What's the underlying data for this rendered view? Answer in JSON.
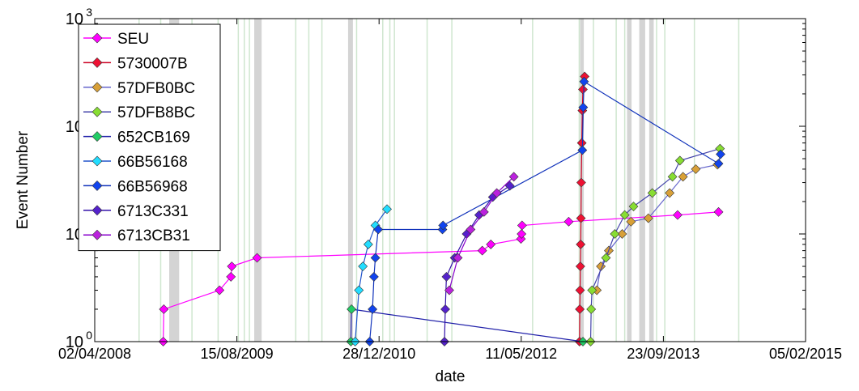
{
  "chart_data": {
    "type": "scatter",
    "title": "",
    "xlabel": "date",
    "ylabel": "Event Number",
    "y_scale": "log",
    "ylim": [
      1,
      1000
    ],
    "xlim": [
      "2008-04-02",
      "2015-02-05"
    ],
    "x_ticks": [
      "02/04/2008",
      "15/08/2009",
      "28/12/2010",
      "11/05/2012",
      "23/09/2013",
      "05/02/2015"
    ],
    "y_ticks": [
      {
        "value": 1,
        "base": "10",
        "exp": "0"
      },
      {
        "value": 10,
        "base": "10",
        "exp": "1"
      },
      {
        "value": 100,
        "base": "10",
        "exp": "2"
      },
      {
        "value": 1000,
        "base": "10",
        "exp": "3"
      }
    ],
    "legend_placement": "top-left",
    "grid": false,
    "background_bands": {
      "gray": [
        [
          "2008-12-20",
          "2009-01-24"
        ],
        [
          "2009-10-15",
          "2009-11-10"
        ],
        [
          "2010-09-10",
          "2010-09-27"
        ],
        [
          "2012-12-04",
          "2012-12-17"
        ],
        [
          "2013-05-18",
          "2013-06-03"
        ],
        [
          "2013-06-30",
          "2013-07-21"
        ],
        [
          "2013-08-04",
          "2013-08-20"
        ]
      ],
      "green": [
        "2008-09-05",
        "2008-11-20",
        "2009-03-10",
        "2009-06-10",
        "2009-08-20",
        "2009-09-10",
        "2009-09-28",
        "2010-03-10",
        "2010-04-25",
        "2010-06-10",
        "2010-10-10",
        "2011-01-10",
        "2011-02-04",
        "2011-02-20",
        "2011-06-15",
        "2011-09-10",
        "2012-06-20",
        "2012-12-01",
        "2013-01-20",
        "2013-04-10",
        "2013-05-10",
        "2013-08-30",
        "2013-09-28",
        "2014-01-10",
        "2014-06-15"
      ]
    },
    "series": [
      {
        "name": "SEU",
        "color": "#ff00ff",
        "line_color": "#ff00ff",
        "points": [
          [
            "2008-11-29",
            1
          ],
          [
            "2008-12-01",
            2
          ],
          [
            "2009-06-15",
            3
          ],
          [
            "2009-07-25",
            4
          ],
          [
            "2009-07-28",
            5
          ],
          [
            "2009-10-25",
            6
          ],
          [
            "2011-12-26",
            7
          ],
          [
            "2012-01-25",
            8
          ],
          [
            "2012-05-10",
            9
          ],
          [
            "2012-05-12",
            10
          ],
          [
            "2012-05-14",
            12
          ],
          [
            "2012-10-25",
            13
          ],
          [
            "2013-11-12",
            15
          ],
          [
            "2014-04-05",
            16
          ]
        ]
      },
      {
        "name": "5730007B",
        "color": "#ee1133",
        "line_color": "#cc0022",
        "points": [
          [
            "2012-12-02",
            1
          ],
          [
            "2012-12-03",
            2
          ],
          [
            "2012-12-04",
            3
          ],
          [
            "2012-12-05",
            5
          ],
          [
            "2012-12-06",
            8
          ],
          [
            "2012-12-07",
            14
          ],
          [
            "2012-12-08",
            30
          ],
          [
            "2012-12-10",
            70
          ],
          [
            "2012-12-12",
            140
          ],
          [
            "2012-12-14",
            220
          ],
          [
            "2012-12-20",
            290
          ]
        ]
      },
      {
        "name": "57DFB0BC",
        "color": "#d8a038",
        "line_color": "#6666cc",
        "points": [
          [
            "2013-02-01",
            3
          ],
          [
            "2013-02-15",
            5
          ],
          [
            "2013-03-15",
            7
          ],
          [
            "2013-05-01",
            10
          ],
          [
            "2013-06-01",
            13
          ],
          [
            "2013-08-01",
            14
          ],
          [
            "2013-10-15",
            24
          ],
          [
            "2013-12-01",
            34
          ],
          [
            "2014-01-15",
            40
          ],
          [
            "2014-04-01",
            44
          ]
        ]
      },
      {
        "name": "57DFB8BC",
        "color": "#88dd33",
        "line_color": "#4444aa",
        "points": [
          [
            "2013-01-10",
            1
          ],
          [
            "2013-01-12",
            2
          ],
          [
            "2013-01-15",
            3
          ],
          [
            "2013-03-05",
            6
          ],
          [
            "2013-04-05",
            10
          ],
          [
            "2013-05-10",
            15
          ],
          [
            "2013-06-10",
            18
          ],
          [
            "2013-08-15",
            24
          ],
          [
            "2013-10-25",
            34
          ],
          [
            "2013-11-20",
            48
          ],
          [
            "2014-04-10",
            62
          ]
        ]
      },
      {
        "name": "652CB169",
        "color": "#22cc66",
        "line_color": "#2222aa",
        "points": [
          [
            "2010-09-20",
            1
          ],
          [
            "2010-09-22",
            2
          ],
          [
            "2012-12-14",
            1
          ]
        ]
      },
      {
        "name": "66B56168",
        "color": "#22ddff",
        "line_color": "#2255cc",
        "points": [
          [
            "2010-10-05",
            1
          ],
          [
            "2010-10-18",
            3
          ],
          [
            "2010-11-01",
            5
          ],
          [
            "2010-11-20",
            8
          ],
          [
            "2010-12-15",
            12
          ],
          [
            "2011-01-25",
            17
          ]
        ]
      },
      {
        "name": "66B56968",
        "color": "#1144ee",
        "line_color": "#1133bb",
        "points": [
          [
            "2010-11-25",
            1
          ],
          [
            "2010-12-05",
            2
          ],
          [
            "2010-12-10",
            4
          ],
          [
            "2010-12-15",
            6
          ],
          [
            "2010-12-25",
            11
          ],
          [
            "2011-08-08",
            11
          ],
          [
            "2011-08-10",
            12
          ],
          [
            "2012-12-12",
            60
          ],
          [
            "2012-12-15",
            150
          ],
          [
            "2012-12-18",
            260
          ],
          [
            "2014-04-05",
            45
          ],
          [
            "2014-04-12",
            55
          ]
        ]
      },
      {
        "name": "6713C331",
        "color": "#5522cc",
        "line_color": "#3311aa",
        "points": [
          [
            "2011-08-15",
            1
          ],
          [
            "2011-08-18",
            2
          ],
          [
            "2011-08-22",
            4
          ],
          [
            "2011-09-20",
            6
          ],
          [
            "2011-11-01",
            10
          ],
          [
            "2011-12-15",
            15
          ],
          [
            "2012-02-01",
            22
          ],
          [
            "2012-04-01",
            28
          ]
        ]
      },
      {
        "name": "6713CB31",
        "color": "#bb22dd",
        "line_color": "#8800cc",
        "points": [
          [
            "2011-09-01",
            3
          ],
          [
            "2011-10-01",
            6
          ],
          [
            "2011-11-15",
            11
          ],
          [
            "2012-01-01",
            16
          ],
          [
            "2012-02-15",
            24
          ],
          [
            "2012-04-15",
            34
          ]
        ]
      }
    ]
  }
}
